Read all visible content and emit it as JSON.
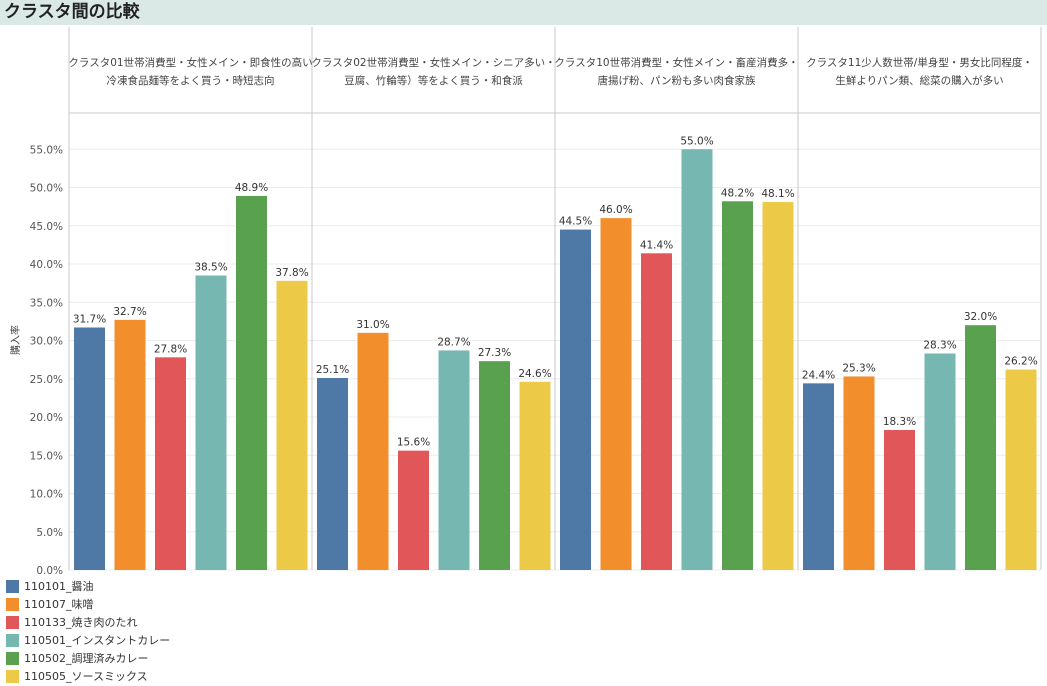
{
  "title": "クラスタ間の比較",
  "chart_data": {
    "type": "bar",
    "ylabel": "購入率",
    "ylim": [
      0,
      0.6
    ],
    "yticks": [
      "0.0%",
      "5.0%",
      "10.0%",
      "15.0%",
      "20.0%",
      "25.0%",
      "30.0%",
      "35.0%",
      "40.0%",
      "45.0%",
      "50.0%",
      "55.0%"
    ],
    "panels": [
      {
        "header_lines": [
          "クラスタ01世帯消費型・女性メイン・即食性の高い",
          "冷凍食品麺等をよく買う・時短志向"
        ],
        "values": [
          31.7,
          32.7,
          27.8,
          38.5,
          48.9,
          37.8
        ],
        "labels": [
          "31.7%",
          "32.7%",
          "27.8%",
          "38.5%",
          "48.9%",
          "37.8%"
        ]
      },
      {
        "header_lines": [
          "クラスタ02世帯消費型・女性メイン・シニア多い・",
          "豆腐、竹輪等）等をよく買う・和食派"
        ],
        "values": [
          25.1,
          31.0,
          15.6,
          28.7,
          27.3,
          24.6
        ],
        "labels": [
          "25.1%",
          "31.0%",
          "15.6%",
          "28.7%",
          "27.3%",
          "24.6%"
        ]
      },
      {
        "header_lines": [
          "クラスタ10世帯消費型・女性メイン・畜産消費多・",
          "唐揚げ粉、パン粉も多い肉食家族"
        ],
        "values": [
          44.5,
          46.0,
          41.4,
          55.0,
          48.2,
          48.1
        ],
        "labels": [
          "44.5%",
          "46.0%",
          "41.4%",
          "55.0%",
          "48.2%",
          "48.1%"
        ]
      },
      {
        "header_lines": [
          "クラスタ11少人数世帯/単身型・男女比同程度・",
          "生鮮よりパン類、総菜の購入が多い"
        ],
        "values": [
          24.4,
          25.3,
          18.3,
          28.3,
          32.0,
          26.2
        ],
        "labels": [
          "24.4%",
          "25.3%",
          "18.3%",
          "28.3%",
          "32.0%",
          "26.2%"
        ]
      }
    ],
    "series": [
      {
        "name": "110101_醤油",
        "color": "#4e79a7"
      },
      {
        "name": "110107_味噌",
        "color": "#f28e2b"
      },
      {
        "name": "110133_焼き肉のたれ",
        "color": "#e15759"
      },
      {
        "name": "110501_インスタントカレー",
        "color": "#76b7b2"
      },
      {
        "name": "110502_調理済みカレー",
        "color": "#59a14f"
      },
      {
        "name": "110505_ソースミックス",
        "color": "#edc948"
      }
    ],
    "legend_position": "bottom-left",
    "grid": true
  }
}
